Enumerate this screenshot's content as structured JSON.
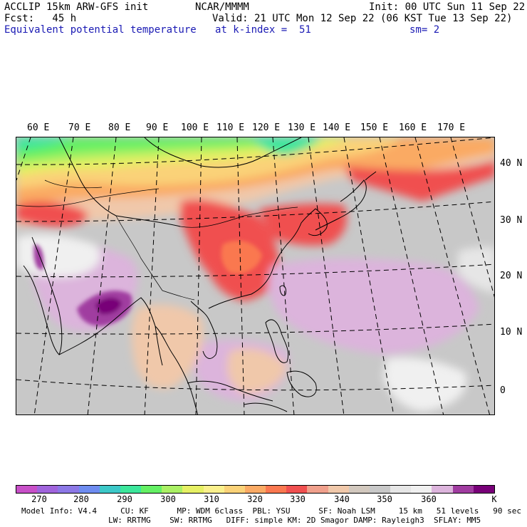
{
  "header": {
    "line1_left": "ACCLIP 15km ARW-GFS init",
    "line1_center": "NCAR/MMMM",
    "line1_right": "Init: 00 UTC Sun 11 Sep 22",
    "line2_left": "Fcst:   45 h",
    "line2_right": "Valid: 21 UTC Mon 12 Sep 22 (06 KST Tue 13 Sep 22)",
    "line3_left": "Equivalent potential temperature",
    "line3_center": "at k-index =  51",
    "line3_right": "sm= 2"
  },
  "map": {
    "lon_labels": [
      "60 E",
      "70 E",
      "80 E",
      "90 E",
      "100 E",
      "110 E",
      "120 E",
      "130 E",
      "140 E",
      "150 E",
      "160 E",
      "170 E"
    ],
    "lat_labels": [
      "40 N",
      "30 N",
      "20 N",
      "10 N",
      "0"
    ]
  },
  "colorbar": {
    "colors": [
      "#c850c8",
      "#a064dc",
      "#8c78e6",
      "#6e8cf0",
      "#3cc8c8",
      "#3ce69b",
      "#64f064",
      "#aaf064",
      "#e6f064",
      "#faf08c",
      "#fad278",
      "#faaa64",
      "#fa7850",
      "#f05050",
      "#f0a08c",
      "#f0c8aa",
      "#d2c8be",
      "#c8c8c8",
      "#e6e6e6",
      "#f0f0f0",
      "#dcb4dc",
      "#a03ca0",
      "#780078"
    ],
    "labels": [
      "270",
      "280",
      "290",
      "300",
      "310",
      "320",
      "330",
      "340",
      "350",
      "360",
      "K"
    ]
  },
  "footer": {
    "line1": "Model Info: V4.4     CU: KF      MP: WDM 6class  PBL: YSU      SF: Noah LSM     15 km   51 levels   90 sec",
    "line2": "LW: RRTMG    SW: RRTMG   DIFF: simple KM: 2D Smagor DAMP: Rayleigh3  SFLAY: MM5"
  }
}
